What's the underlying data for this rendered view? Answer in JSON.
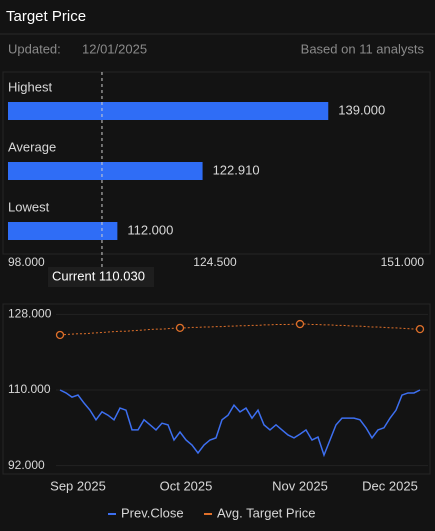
{
  "title": "Target Price",
  "updated_label": "Updated:",
  "updated": "12/01/2025",
  "analysts": "Based on 11 analysts",
  "chart_data": [
    {
      "type": "hbar",
      "categories": [
        "Highest",
        "Average",
        "Lowest"
      ],
      "values": [
        139,
        122.91,
        112
      ],
      "value_labels": [
        "139.000",
        "122.910",
        "112.000"
      ],
      "color": "#2f6df6",
      "xlim": [
        98,
        151
      ],
      "xticks": [
        {
          "value": 98,
          "label": "98.000"
        },
        {
          "value": 124.5,
          "label": "124.500"
        },
        {
          "value": 151,
          "label": "151.000"
        }
      ],
      "current": {
        "value": 110.03,
        "label": "Current 110.030"
      },
      "grid": false
    },
    {
      "type": "line",
      "categories": [
        null,
        null,
        null,
        "Sep 2025",
        null,
        null,
        null,
        null,
        null,
        null,
        null,
        null,
        null,
        null,
        null,
        null,
        null,
        null,
        null,
        null,
        null,
        "Oct 2025",
        null,
        null,
        null,
        null,
        null,
        null,
        null,
        null,
        null,
        null,
        null,
        null,
        null,
        null,
        null,
        null,
        null,
        null,
        "Nov 2025",
        null,
        null,
        null,
        null,
        null,
        null,
        null,
        null,
        null,
        null,
        null,
        null,
        null,
        null,
        "Dec 2025",
        null,
        null,
        null,
        null,
        null
      ],
      "series": [
        {
          "name": "Prev.Close",
          "color": "#3d6ff0",
          "values": [
            110.0,
            109.3,
            108.3,
            108.8,
            106.9,
            105.2,
            102.9,
            104.8,
            104.0,
            102.9,
            105.7,
            105.2,
            100.5,
            100.5,
            102.9,
            101.7,
            100.5,
            102.1,
            101.7,
            98.1,
            100.0,
            98.1,
            96.9,
            95.0,
            96.9,
            98.1,
            98.6,
            102.9,
            104.0,
            106.4,
            104.8,
            105.7,
            103.3,
            105.2,
            101.7,
            100.5,
            101.7,
            100.5,
            99.3,
            98.6,
            99.5,
            100.5,
            98.1,
            98.8,
            94.5,
            98.1,
            101.7,
            103.3,
            103.3,
            103.3,
            102.9,
            101.0,
            98.6,
            100.5,
            101.0,
            103.3,
            105.2,
            108.8,
            109.3,
            109.3,
            110.0
          ]
        },
        {
          "name": "Avg. Target Price",
          "color": "#e0702a",
          "values": [
            123.1,
            123.2,
            123.3,
            123.4,
            123.4,
            123.5,
            123.6,
            123.7,
            123.8,
            123.9,
            124.0,
            124.0,
            124.1,
            124.2,
            124.3,
            124.4,
            124.5,
            124.5,
            124.6,
            124.7,
            124.8,
            124.8,
            124.9,
            124.9,
            125.0,
            125.0,
            125.1,
            125.1,
            125.2,
            125.2,
            125.3,
            125.3,
            125.4,
            125.4,
            125.5,
            125.5,
            125.6,
            125.6,
            125.6,
            125.7,
            125.7,
            125.7,
            125.6,
            125.6,
            125.5,
            125.5,
            125.4,
            125.4,
            125.3,
            125.2,
            125.2,
            125.1,
            125.0,
            125.0,
            124.9,
            124.8,
            124.8,
            124.7,
            124.6,
            124.5,
            124.5
          ]
        }
      ],
      "ylim": [
        90,
        130
      ],
      "yticks": [
        {
          "value": 92,
          "label": "92.000"
        },
        {
          "value": 110,
          "label": "110.000"
        },
        {
          "value": 128,
          "label": "128.000"
        }
      ],
      "grid": true
    }
  ]
}
